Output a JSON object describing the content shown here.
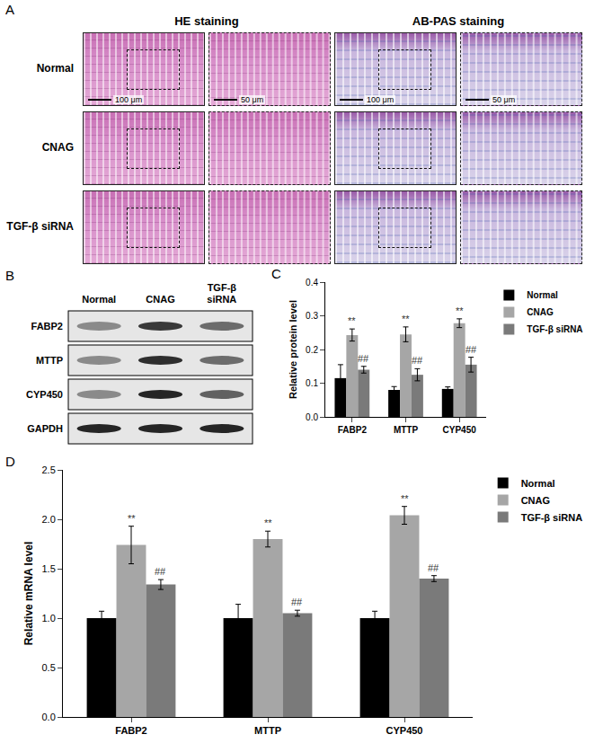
{
  "panel_a": {
    "panel": "A",
    "columns": [
      "HE staining",
      "AB-PAS staining"
    ],
    "rows": [
      "Normal",
      "CNAG",
      "TGF-β siRNA"
    ],
    "scale_bars": [
      "100 μm",
      "50 μm"
    ]
  },
  "panel_b": {
    "panel": "B",
    "lanes": [
      "Normal",
      "CNAG",
      "TGF-β siRNA"
    ],
    "proteins": [
      "FABP2",
      "MTTP",
      "CYP450",
      "GAPDH"
    ]
  },
  "chart_data": [
    {
      "panel": "C",
      "type": "bar",
      "y_label": "Relative protein level",
      "categories": [
        "FABP2",
        "MTTP",
        "CYP450"
      ],
      "series": [
        {
          "name": "Normal",
          "color": "#000000",
          "values": [
            0.115,
            0.08,
            0.083
          ],
          "error": [
            0.04,
            0.01,
            0.006
          ],
          "sig_labels": [
            null,
            null,
            null
          ]
        },
        {
          "name": "CNAG",
          "color": "#a6a6a6",
          "values": [
            0.243,
            0.245,
            0.278
          ],
          "error": [
            0.018,
            0.022,
            0.013
          ],
          "sig_labels": [
            "**",
            "**",
            "**"
          ]
        },
        {
          "name": "TGF-β siRNA",
          "color": "#7a7a7a",
          "values": [
            0.14,
            0.125,
            0.155
          ],
          "error": [
            0.01,
            0.018,
            0.022
          ],
          "sig_labels": [
            "##",
            "##",
            "##"
          ]
        }
      ],
      "ylim": [
        0,
        0.4
      ],
      "yticks": [
        {
          "value": 0,
          "label": "0.0"
        },
        0.1,
        0.2,
        0.3,
        0.4
      ],
      "grid": false,
      "legend": "right"
    },
    {
      "panel": "D",
      "type": "bar",
      "y_label": "Relative mRNA level",
      "categories": [
        "FABP2",
        "MTTP",
        "CYP450"
      ],
      "series": [
        {
          "name": "Normal",
          "color": "#000000",
          "values": [
            1.0,
            1.0,
            1.0
          ],
          "error": [
            0.07,
            0.14,
            0.07
          ],
          "sig_labels": [
            null,
            null,
            null
          ]
        },
        {
          "name": "CNAG",
          "color": "#a6a6a6",
          "values": [
            1.74,
            1.8,
            2.04
          ],
          "error": [
            0.19,
            0.08,
            0.09
          ],
          "sig_labels": [
            "**",
            "**",
            "**"
          ]
        },
        {
          "name": "TGF-β siRNA",
          "color": "#7a7a7a",
          "values": [
            1.34,
            1.05,
            1.4
          ],
          "error": [
            0.05,
            0.03,
            0.03
          ],
          "sig_labels": [
            "##",
            "##",
            "##"
          ]
        }
      ],
      "ylim": [
        0,
        2.5
      ],
      "yticks": [
        {
          "value": 0,
          "label": "0.0"
        },
        0.5,
        {
          "value": 1,
          "label": "1.0"
        },
        1.5,
        {
          "value": 2,
          "label": "2.0"
        },
        2.5
      ],
      "grid": false,
      "legend": "right"
    }
  ]
}
